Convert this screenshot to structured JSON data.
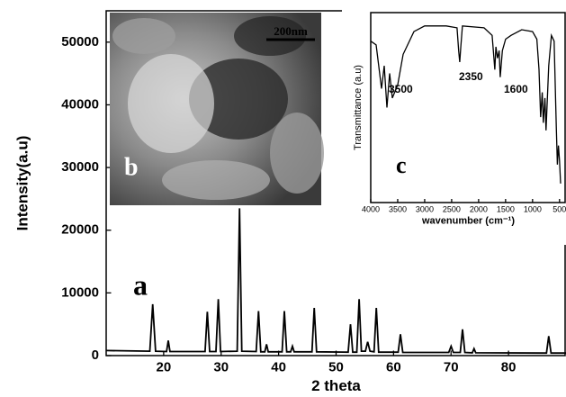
{
  "chart_data": [
    {
      "type": "line",
      "xlabel": "2 theta",
      "ylabel": "Intensity(a.u)",
      "color": "#000000",
      "x": [
        10,
        17.6,
        18.1,
        18.6,
        20.5,
        20.8,
        21.1,
        27.2,
        27.6,
        28,
        29.1,
        29.5,
        29.9,
        32.8,
        33.2,
        33.6,
        36.1,
        36.5,
        36.9,
        37.6,
        37.9,
        38.2,
        40.6,
        41,
        41.4,
        42.1,
        42.4,
        42.7,
        45.8,
        46.2,
        46.6,
        52.1,
        52.5,
        52.9,
        53.6,
        54,
        54.4,
        55.1,
        55.5,
        55.9,
        56.6,
        57,
        57.4,
        60.8,
        61.2,
        61.6,
        69.6,
        70,
        70.4,
        71.6,
        72,
        72.4,
        73.7,
        74,
        74.3,
        86.6,
        87,
        87.4,
        90
      ],
      "values": [
        800,
        700,
        8200,
        700,
        650,
        2400,
        650,
        650,
        7000,
        650,
        650,
        9000,
        650,
        700,
        23500,
        700,
        650,
        7100,
        600,
        600,
        1800,
        600,
        600,
        7100,
        600,
        600,
        1500,
        600,
        600,
        7600,
        600,
        550,
        5000,
        550,
        550,
        9000,
        700,
        700,
        2200,
        700,
        600,
        7600,
        550,
        550,
        3400,
        500,
        500,
        1500,
        500,
        500,
        4200,
        500,
        450,
        1100,
        450,
        400,
        3100,
        400,
        400
      ],
      "xlim": [
        10,
        90
      ],
      "ylim": [
        0,
        55000
      ],
      "xticks": [
        20,
        30,
        40,
        50,
        60,
        70,
        80
      ],
      "yticks": [
        0,
        10000,
        20000,
        30000,
        40000,
        50000
      ],
      "annotations": [
        "a",
        "b"
      ]
    },
    {
      "type": "line",
      "xlabel": "wavenumber (cm⁻¹)",
      "ylabel": "Transmittance (a.u)",
      "color": "#000000",
      "x": [
        4000,
        3900,
        3800,
        3750,
        3700,
        3650,
        3600,
        3500,
        3400,
        3200,
        3000,
        2600,
        2400,
        2370,
        2350,
        2330,
        2300,
        1900,
        1750,
        1700,
        1680,
        1650,
        1620,
        1600,
        1560,
        1500,
        1400,
        1200,
        1000,
        920,
        880,
        850,
        820,
        800,
        770,
        750,
        700,
        650,
        600,
        560,
        540,
        520,
        500,
        480
      ],
      "values": [
        85,
        83,
        60,
        72,
        50,
        68,
        55,
        62,
        78,
        90,
        93,
        93,
        92,
        80,
        74,
        82,
        93,
        92,
        88,
        70,
        82,
        76,
        80,
        66,
        80,
        86,
        88,
        91,
        90,
        86,
        70,
        45,
        58,
        42,
        55,
        38,
        72,
        88,
        85,
        40,
        20,
        30,
        22,
        10
      ],
      "xlim": [
        4000,
        380
      ],
      "ylim": [
        0,
        100
      ],
      "xticks": [
        4000,
        3500,
        3000,
        2500,
        2000,
        1500,
        1000,
        500
      ],
      "annotations": [
        "3500",
        "2350",
        "1600",
        "c"
      ]
    }
  ],
  "image_scale": "200nm"
}
